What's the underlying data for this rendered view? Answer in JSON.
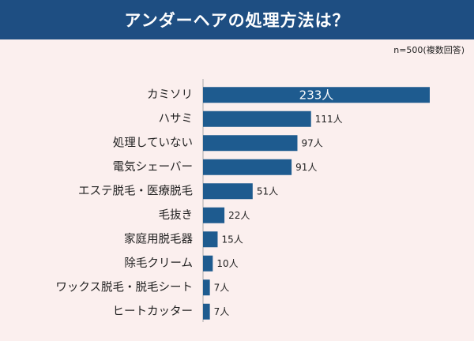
{
  "title": "アンダーヘアの処理方法は？",
  "note": "n=500(複数回答)",
  "colors": {
    "header": "#1e4e82",
    "background": "#fbefee",
    "bar": "#1e5b8f",
    "axis": "#a9a9a9"
  },
  "chart_data": {
    "type": "bar",
    "orientation": "horizontal",
    "categories": [
      "カミソリ",
      "ハサミ",
      "処理していない",
      "電気シェーバー",
      "エステ脱毛・医療脱毛",
      "毛抜き",
      "家庭用脱毛器",
      "除毛クリーム",
      "ワックス脱毛・脱毛シート",
      "ヒートカッター"
    ],
    "values": [
      233,
      111,
      97,
      91,
      51,
      22,
      15,
      10,
      7,
      7
    ],
    "value_labels": [
      "233人",
      "111人",
      "97人",
      "91人",
      "51人",
      "22人",
      "15人",
      "10人",
      "7人",
      "7人"
    ],
    "xlim": [
      0,
      245
    ],
    "grid": false,
    "legend": "none"
  }
}
